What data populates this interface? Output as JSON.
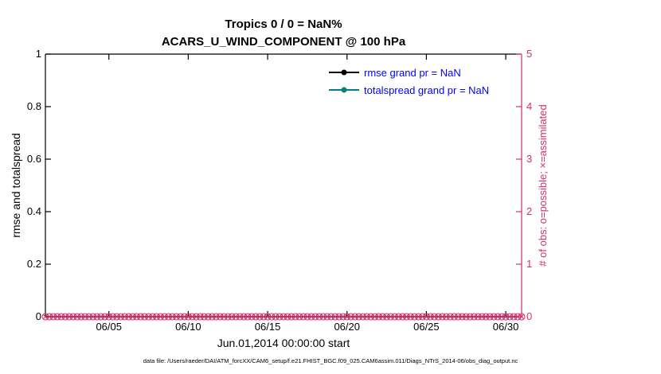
{
  "title": {
    "line1": "Tropics 0 / 0 = NaN%",
    "line2": "ACARS_U_WIND_COMPONENT @ 100 hPa"
  },
  "axes": {
    "left": {
      "label": "rmse and totalspread",
      "ticks": [
        "0",
        "0.2",
        "0.4",
        "0.6",
        "0.8",
        "1"
      ]
    },
    "right": {
      "label": "# of obs: o=possible; ×=assimilated",
      "ticks": [
        "0",
        "1",
        "2",
        "3",
        "4",
        "5"
      ]
    },
    "x": {
      "label": "Jun.01,2014 00:00:00 start",
      "ticks": [
        "06/05",
        "06/10",
        "06/15",
        "06/20",
        "06/25",
        "06/30"
      ],
      "tick_days": [
        5,
        10,
        15,
        20,
        25,
        30
      ],
      "min_day": 1,
      "max_day": 31
    }
  },
  "legend": [
    {
      "label": "rmse grand pr = NaN",
      "color": "#000000"
    },
    {
      "label": "totalspread grand pr = NaN",
      "color": "#008080"
    }
  ],
  "colors": {
    "legend_text": "#0000ff",
    "right_axis": "#d62e6d",
    "rmse_line": "#000000",
    "totalspread_line": "#008080",
    "axis_black": "#000000"
  },
  "footer": "data file: /Users/raeder/DAI/ATM_forcXX/CAM6_setup/f.e21.FHIST_BGC.f09_025.CAM6assim.011/Diags_NTrS_2014-06/obs_diag_output.nc",
  "chart_data": {
    "type": "line",
    "title": "Tropics 0 / 0 = NaN%",
    "subtitle": "ACARS_U_WIND_COMPONENT @ 100 hPa",
    "xlabel": "Jun.01,2014 00:00:00 start",
    "ylabel_left": "rmse and totalspread",
    "ylabel_right": "# of obs: o=possible; ×=assimilated",
    "x_axis": {
      "start_day": 1,
      "end_day": 31,
      "tick_labels": [
        "06/05",
        "06/10",
        "06/15",
        "06/20",
        "06/25",
        "06/30"
      ],
      "tick_days": [
        5,
        10,
        15,
        20,
        25,
        30
      ]
    },
    "ylim_left": [
      0,
      1
    ],
    "yticks_left": [
      0,
      0.2,
      0.4,
      0.6,
      0.8,
      1
    ],
    "ylim_right": [
      0,
      5
    ],
    "yticks_right": [
      0,
      1,
      2,
      3,
      4,
      5
    ],
    "grid": false,
    "legend_position": "upper-right-inside",
    "series": [
      {
        "name": "rmse grand pr = NaN",
        "axis": "left",
        "marker": "filled-circle",
        "color": "#000000",
        "values": "NaN (nothing plotted)"
      },
      {
        "name": "totalspread grand pr = NaN",
        "axis": "left",
        "marker": "filled-circle",
        "color": "#008080",
        "values": "NaN (nothing plotted)"
      },
      {
        "name": "# of obs possible (o)",
        "axis": "right",
        "marker": "o",
        "color": "#d62e6d",
        "constant_value": 0
      },
      {
        "name": "# of obs assimilated (×)",
        "axis": "right",
        "marker": "×",
        "color": "#d62e6d",
        "constant_value": 0
      }
    ],
    "obs_markers": {
      "start_day": 1,
      "end_day": 31,
      "step_days": 0.25,
      "value": 0
    }
  }
}
